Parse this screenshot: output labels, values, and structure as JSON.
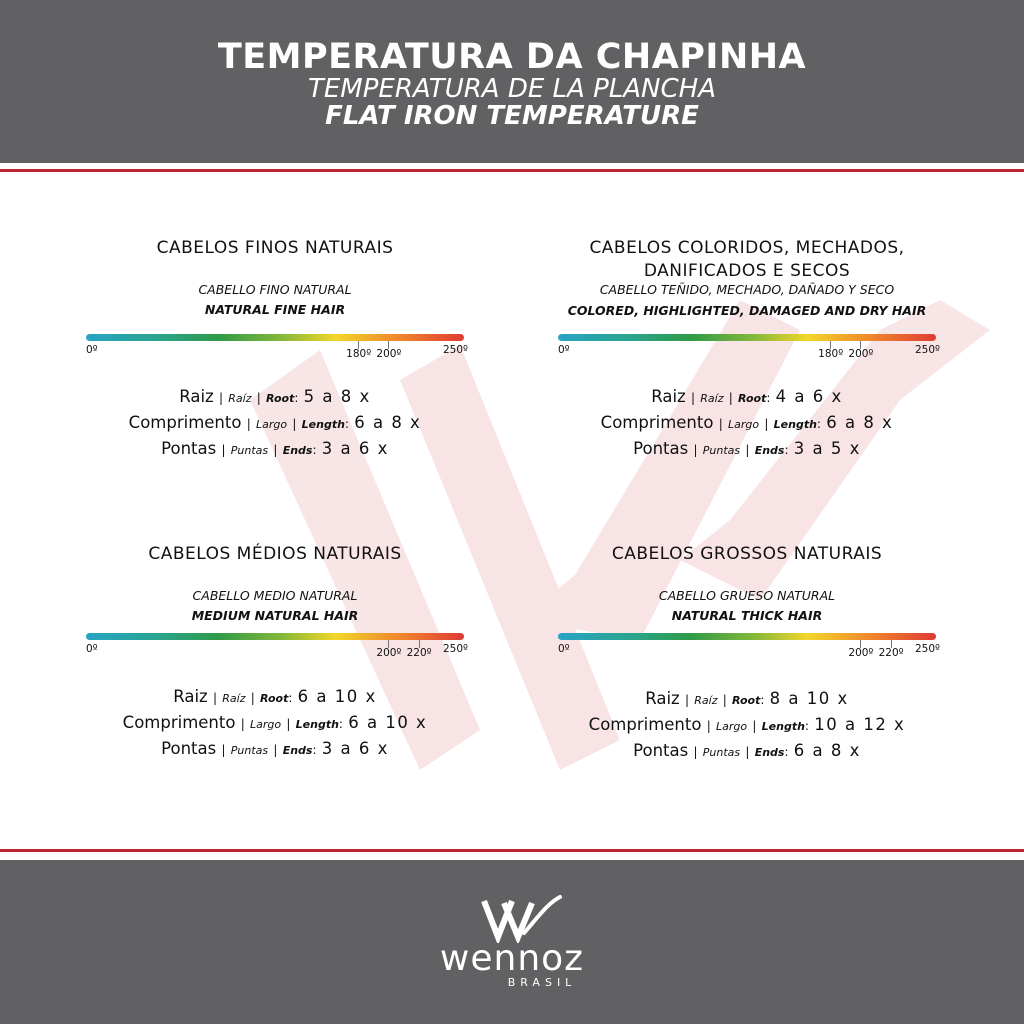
{
  "header": {
    "title_pt": "TEMPERATURA DA CHAPINHA",
    "title_es": "TEMPERATURA DE LA PLANCHA",
    "title_en": "FLAT IRON TEMPERATURE"
  },
  "labels": {
    "raiz": "Raiz",
    "raiz_es": "Raíz",
    "raiz_en": "Root",
    "comprimento": "Comprimento",
    "comprimento_es": "Largo",
    "comprimento_en": "Length",
    "pontas": "Pontas",
    "pontas_es": "Puntas",
    "pontas_en": "Ends"
  },
  "scale": {
    "min_label": "0º",
    "max_label": "250º",
    "min": 0,
    "max": 250,
    "gradient_colors": [
      "#27a3c5",
      "#2aa592",
      "#2f9a48",
      "#86b83a",
      "#f2d62a",
      "#f08a2c",
      "#df3b34"
    ]
  },
  "sections": [
    {
      "title_lines": [
        "CABELOS FINOS NATURAIS"
      ],
      "sub_es": "CABELLO FINO NATURAL",
      "sub_en": "NATURAL FINE HAIR",
      "range_low": 180,
      "range_high": 200,
      "range_low_label": "180º",
      "range_high_label": "200º",
      "raiz": "5 a 8 x",
      "comprimento": "6 a 8 x",
      "pontas": "3 a 6 x"
    },
    {
      "title_lines": [
        "CABELOS COLORIDOS, MECHADOS,",
        "DANIFICADOS E SECOS"
      ],
      "sub_es": "CABELLO TEÑIDO, MECHADO, DAÑADO Y SECO",
      "sub_en": "COLORED, HIGHLIGHTED, DAMAGED AND DRY HAIR",
      "range_low": 180,
      "range_high": 200,
      "range_low_label": "180º",
      "range_high_label": "200º",
      "raiz": "4 a 6 x",
      "comprimento": "6 a 8 x",
      "pontas": "3 a 5 x"
    },
    {
      "title_lines": [
        "CABELOS MÉDIOS NATURAIS"
      ],
      "sub_es": "CABELLO MEDIO NATURAL",
      "sub_en": "MEDIUM NATURAL HAIR",
      "range_low": 200,
      "range_high": 220,
      "range_low_label": "200º",
      "range_high_label": "220º",
      "raiz": "6 a 10 x",
      "comprimento": "6 a 10 x",
      "pontas": "3 a 6 x"
    },
    {
      "title_lines": [
        "CABELOS GROSSOS NATURAIS"
      ],
      "sub_es": "CABELLO GRUESO NATURAL",
      "sub_en": "NATURAL THICK HAIR",
      "range_low": 200,
      "range_high": 220,
      "range_low_label": "200º",
      "range_high_label": "220º",
      "raiz": "8 a 10 x",
      "comprimento": "10 a 12 x",
      "pontas": "6 a 8 x"
    }
  ],
  "footer": {
    "logo_icon": "wennoz-w-logo-icon",
    "brand": "wennoz",
    "brand_sub": "BRASIL"
  },
  "colors": {
    "band_gray": "#616163",
    "accent_red": "#b9262c",
    "watermark_pink": "#f6dcdd"
  }
}
